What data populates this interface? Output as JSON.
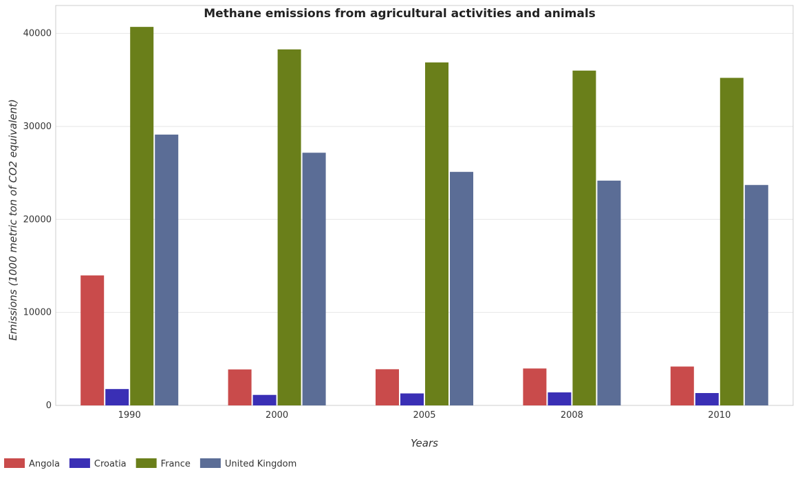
{
  "chart_data": {
    "type": "bar",
    "title": "Methane emissions from agricultural activities and animals",
    "xlabel": "Years",
    "ylabel": "Emissions (1000 metric ton of CO2 equivalent)",
    "categories": [
      "1990",
      "2000",
      "2005",
      "2008",
      "2010"
    ],
    "ylim": [
      0,
      43000
    ],
    "yticks": [
      0,
      10000,
      20000,
      30000,
      40000
    ],
    "ytick_labels": [
      "0",
      "10000",
      "20000",
      "30000",
      "40000"
    ],
    "grid": true,
    "legend_position": "bottom-left",
    "series": [
      {
        "name": "Angola",
        "color": "#c94b4b",
        "values": [
          13980,
          3870,
          3890,
          3970,
          4180
        ]
      },
      {
        "name": "Croatia",
        "color": "#3a2fb5",
        "values": [
          1760,
          1130,
          1290,
          1400,
          1330
        ]
      },
      {
        "name": "France",
        "color": "#6a7f1a",
        "values": [
          40700,
          38280,
          36880,
          36000,
          35220
        ]
      },
      {
        "name": "United Kingdom",
        "color": "#5b6d96",
        "values": [
          29120,
          27170,
          25110,
          24170,
          23700
        ]
      }
    ]
  }
}
